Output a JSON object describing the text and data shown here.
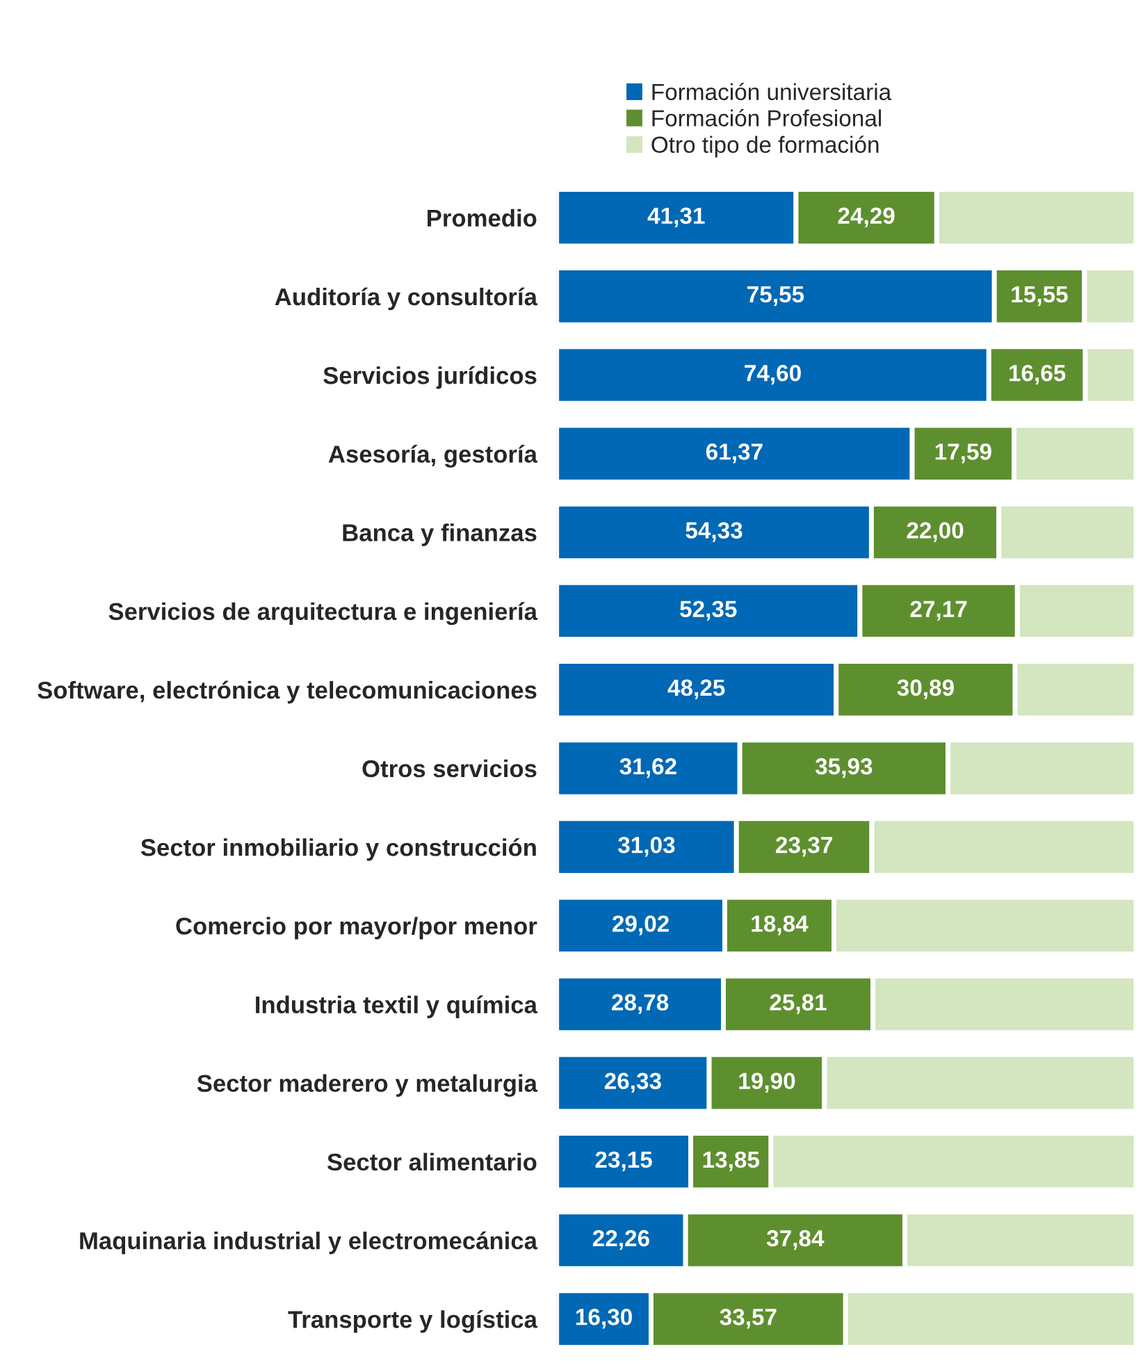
{
  "chart_data": {
    "type": "bar",
    "orientation": "horizontal",
    "stacked": true,
    "legend": "top",
    "categories": [
      "Promedio",
      "Auditoría y consultoría",
      "Servicios jurídicos",
      "Asesoría, gestoría",
      "Banca y finanzas",
      "Servicios de arquitectura e ingeniería",
      "Software, electrónica y telecomunicaciones",
      "Otros servicios",
      "Sector inmobiliario y construcción",
      "Comercio por mayor/por menor",
      "Industria textil y química",
      "Sector maderero y metalurgia",
      "Sector alimentario",
      "Maquinaria industrial y electromecánica",
      "Transporte y logística"
    ],
    "xlim": [
      0,
      100
    ],
    "series": [
      {
        "name": "Formación universitaria",
        "color": "#0068b4",
        "values": [
          41.31,
          75.55,
          74.6,
          61.37,
          54.33,
          52.35,
          48.25,
          31.62,
          31.03,
          29.02,
          28.78,
          26.33,
          23.15,
          22.26,
          16.3
        ],
        "value_labels": [
          "41,31",
          "75,55",
          "74,60",
          "61,37",
          "54,33",
          "52,35",
          "48,25",
          "31,62",
          "31,03",
          "29,02",
          "28,78",
          "26,33",
          "23,15",
          "22,26",
          "16,30"
        ]
      },
      {
        "name": "Formación Profesional",
        "color": "#5e8f2f",
        "values": [
          24.29,
          15.55,
          16.65,
          17.59,
          22.0,
          27.17,
          30.89,
          35.93,
          23.37,
          18.84,
          25.81,
          19.9,
          13.85,
          37.84,
          33.57
        ],
        "value_labels": [
          "24,29",
          "15,55",
          "16,65",
          "17,59",
          "22,00",
          "27,17",
          "30,89",
          "35,93",
          "23,37",
          "18,84",
          "25,81",
          "19,90",
          "13,85",
          "37,84",
          "33,57"
        ]
      },
      {
        "name": "Otro tipo de formación",
        "color": "#d3e6c0",
        "values": [
          34.4,
          8.9,
          8.75,
          21.04,
          23.67,
          20.48,
          20.86,
          32.45,
          45.6,
          52.14,
          45.41,
          53.77,
          63.0,
          39.9,
          50.13
        ]
      }
    ]
  }
}
